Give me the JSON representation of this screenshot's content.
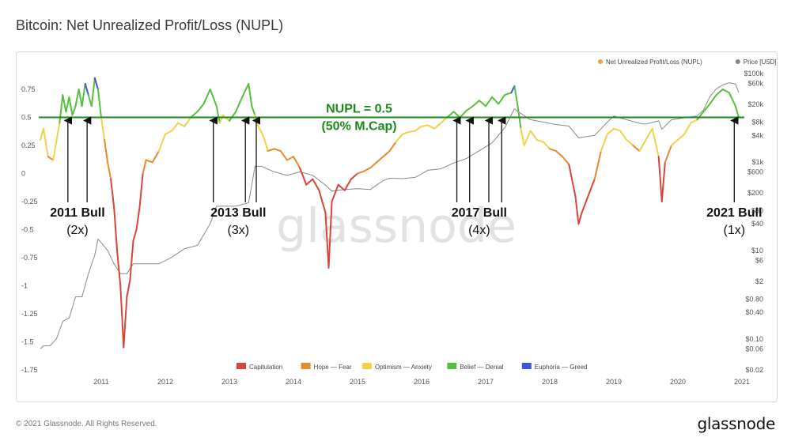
{
  "page": {
    "title": "Bitcoin: Net Unrealized Profit/Loss (NUPL)",
    "copyright": "© 2021 Glassnode. All Rights Reserved.",
    "logo": "glassnode",
    "watermark": "glassnode"
  },
  "chart_data": {
    "type": "line",
    "title": "Bitcoin: Net Unrealized Profit/Loss (NUPL)",
    "legend_top": [
      {
        "name": "Net Unrealized Profit/Loss (NUPL)",
        "color": "#f0a040"
      },
      {
        "name": "Price [USD]",
        "color": "#888888"
      }
    ],
    "legend_bottom": [
      {
        "name": "Capitulation",
        "color": "#d9443b"
      },
      {
        "name": "Hope — Fear",
        "color": "#e88a2c"
      },
      {
        "name": "Optimism — Anxiety",
        "color": "#eed34a"
      },
      {
        "name": "Belief — Denial",
        "color": "#55c03c"
      },
      {
        "name": "Euphoria — Greed",
        "color": "#3e55e0"
      }
    ],
    "x_ticks": [
      "2011",
      "2012",
      "2013",
      "2014",
      "2015",
      "2016",
      "2017",
      "2018",
      "2019",
      "2020",
      "2021"
    ],
    "left_axis": {
      "ticks": [
        "0.75",
        "0.5",
        "0.25",
        "0",
        "-0.25",
        "-0.5",
        "-0.75",
        "-1",
        "-1.25",
        "-1.5",
        "-1.75"
      ],
      "values": [
        0.75,
        0.5,
        0.25,
        0,
        -0.25,
        -0.5,
        -0.75,
        -1,
        -1.25,
        -1.5,
        -1.75
      ],
      "ylim": [
        -1.75,
        0.75
      ]
    },
    "right_axis": {
      "scale": "log",
      "ticks": [
        "$100k",
        "$60k",
        "$20k",
        "$8k",
        "$4k",
        "$1k",
        "$600",
        "$200",
        "$80",
        "$40",
        "$10",
        "$6",
        "$2",
        "$0.80",
        "$0.40",
        "$0.10",
        "$0.06",
        "$0.02"
      ],
      "values": [
        100000,
        60000,
        20000,
        8000,
        4000,
        1000,
        600,
        200,
        80,
        40,
        10,
        6,
        2,
        0.8,
        0.4,
        0.1,
        0.06,
        0.02
      ]
    },
    "reference_line": {
      "value": 0.5,
      "label_line1": "NUPL = 0.5",
      "label_line2": "(50% M.Cap)",
      "color": "#1a8a1a"
    },
    "nupl_series": {
      "name": "Net Unrealized Profit/Loss (NUPL)",
      "x": [
        2010.55,
        2010.6,
        2010.67,
        2010.75,
        2010.85,
        2010.9,
        2010.95,
        2011.0,
        2011.05,
        2011.1,
        2011.15,
        2011.2,
        2011.25,
        2011.3,
        2011.35,
        2011.4,
        2011.45,
        2011.5,
        2011.55,
        2011.6,
        2011.65,
        2011.7,
        2011.75,
        2011.8,
        2011.85,
        2011.9,
        2011.95,
        2012.0,
        2012.05,
        2012.1,
        2012.15,
        2012.2,
        2012.3,
        2012.4,
        2012.5,
        2012.6,
        2012.7,
        2012.8,
        2012.9,
        2013.0,
        2013.1,
        2013.2,
        2013.3,
        2013.35,
        2013.4,
        2013.5,
        2013.6,
        2013.7,
        2013.8,
        2013.85,
        2013.9,
        2013.95,
        2014.0,
        2014.05,
        2014.1,
        2014.2,
        2014.3,
        2014.4,
        2014.5,
        2014.6,
        2014.7,
        2014.8,
        2014.9,
        2015.0,
        2015.05,
        2015.1,
        2015.2,
        2015.3,
        2015.4,
        2015.5,
        2015.6,
        2015.7,
        2015.8,
        2015.9,
        2016.0,
        2016.1,
        2016.2,
        2016.3,
        2016.4,
        2016.5,
        2016.6,
        2016.7,
        2016.8,
        2016.9,
        2017.0,
        2017.1,
        2017.2,
        2017.3,
        2017.4,
        2017.5,
        2017.6,
        2017.7,
        2017.8,
        2017.9,
        2017.95,
        2018.0,
        2018.05,
        2018.1,
        2018.2,
        2018.3,
        2018.4,
        2018.5,
        2018.6,
        2018.7,
        2018.8,
        2018.9,
        2018.95,
        2019.0,
        2019.1,
        2019.2,
        2019.3,
        2019.4,
        2019.5,
        2019.6,
        2019.7,
        2019.8,
        2019.9,
        2020.0,
        2020.1,
        2020.2,
        2020.25,
        2020.3,
        2020.4,
        2020.5,
        2020.6,
        2020.7,
        2020.8,
        2020.9,
        2021.0,
        2021.1,
        2021.2,
        2021.3,
        2021.4,
        2021.45
      ],
      "values": [
        0.3,
        0.4,
        0.15,
        0.12,
        0.45,
        0.7,
        0.55,
        0.68,
        0.52,
        0.6,
        0.75,
        0.6,
        0.8,
        0.7,
        0.6,
        0.85,
        0.75,
        0.5,
        0.3,
        0.1,
        -0.05,
        -0.3,
        -0.7,
        -1.0,
        -1.55,
        -1.1,
        -0.95,
        -0.6,
        -0.5,
        -0.3,
        0.0,
        0.12,
        0.1,
        0.2,
        0.35,
        0.38,
        0.45,
        0.42,
        0.5,
        0.55,
        0.62,
        0.75,
        0.6,
        0.45,
        0.52,
        0.47,
        0.55,
        0.68,
        0.8,
        0.6,
        0.52,
        0.42,
        0.37,
        0.3,
        0.2,
        0.22,
        0.2,
        0.12,
        0.15,
        0.05,
        -0.1,
        -0.05,
        -0.15,
        -0.35,
        -0.84,
        -0.25,
        -0.1,
        -0.15,
        -0.05,
        0.0,
        0.02,
        0.05,
        0.1,
        0.15,
        0.2,
        0.28,
        0.35,
        0.37,
        0.38,
        0.42,
        0.43,
        0.4,
        0.45,
        0.5,
        0.55,
        0.5,
        0.56,
        0.6,
        0.65,
        0.6,
        0.68,
        0.62,
        0.7,
        0.72,
        0.78,
        0.6,
        0.4,
        0.25,
        0.38,
        0.3,
        0.28,
        0.22,
        0.2,
        0.15,
        0.08,
        -0.2,
        -0.45,
        -0.35,
        -0.2,
        -0.05,
        0.2,
        0.35,
        0.4,
        0.38,
        0.3,
        0.25,
        0.2,
        0.3,
        0.4,
        0.15,
        -0.25,
        0.1,
        0.25,
        0.3,
        0.35,
        0.45,
        0.48,
        0.55,
        0.62,
        0.7,
        0.75,
        0.72,
        0.6,
        0.5
      ]
    },
    "price_series": {
      "name": "Price [USD]",
      "x": [
        2010.55,
        2010.6,
        2010.7,
        2010.8,
        2010.9,
        2011.0,
        2011.1,
        2011.2,
        2011.3,
        2011.4,
        2011.45,
        2011.5,
        2011.6,
        2011.7,
        2011.8,
        2011.9,
        2012.0,
        2012.2,
        2012.4,
        2012.6,
        2012.8,
        2013.0,
        2013.2,
        2013.3,
        2013.4,
        2013.6,
        2013.8,
        2013.9,
        2014.0,
        2014.2,
        2014.4,
        2014.6,
        2014.8,
        2015.0,
        2015.1,
        2015.3,
        2015.5,
        2015.7,
        2015.9,
        2016.0,
        2016.2,
        2016.4,
        2016.6,
        2016.8,
        2017.0,
        2017.2,
        2017.4,
        2017.6,
        2017.8,
        2017.95,
        2018.0,
        2018.2,
        2018.4,
        2018.6,
        2018.8,
        2018.95,
        2019.0,
        2019.2,
        2019.4,
        2019.5,
        2019.7,
        2019.9,
        2020.0,
        2020.2,
        2020.25,
        2020.4,
        2020.6,
        2020.8,
        2020.9,
        2021.0,
        2021.1,
        2021.2,
        2021.3,
        2021.4,
        2021.45
      ],
      "values": [
        0.06,
        0.07,
        0.07,
        0.1,
        0.25,
        0.3,
        0.9,
        0.9,
        3,
        8,
        18,
        15,
        10,
        5,
        3,
        3,
        5,
        5,
        5,
        7,
        11,
        13,
        40,
        100,
        100,
        100,
        120,
        800,
        800,
        600,
        500,
        600,
        500,
        300,
        220,
        240,
        250,
        240,
        380,
        430,
        420,
        450,
        650,
        700,
        950,
        1200,
        1800,
        2700,
        6000,
        16000,
        14000,
        9000,
        8000,
        7000,
        6500,
        3500,
        3600,
        4000,
        8000,
        11000,
        9000,
        7500,
        7200,
        8500,
        5500,
        9000,
        10000,
        11000,
        15000,
        30000,
        45000,
        55000,
        62000,
        58000,
        37000
      ]
    },
    "annotations": [
      {
        "label": "2011 Bull",
        "multiple": "(2x)",
        "arrows_x": [
          2010.98,
          2011.28
        ]
      },
      {
        "label": "2013 Bull",
        "multiple": "(3x)",
        "arrows_x": [
          2013.25,
          2013.75,
          2013.92
        ]
      },
      {
        "label": "2017 Bull",
        "multiple": "(4x)",
        "arrows_x": [
          2017.05,
          2017.25,
          2017.55,
          2017.75
        ]
      },
      {
        "label": "2021 Bull",
        "multiple": "(1x)",
        "arrows_x": [
          2021.38
        ]
      }
    ]
  }
}
